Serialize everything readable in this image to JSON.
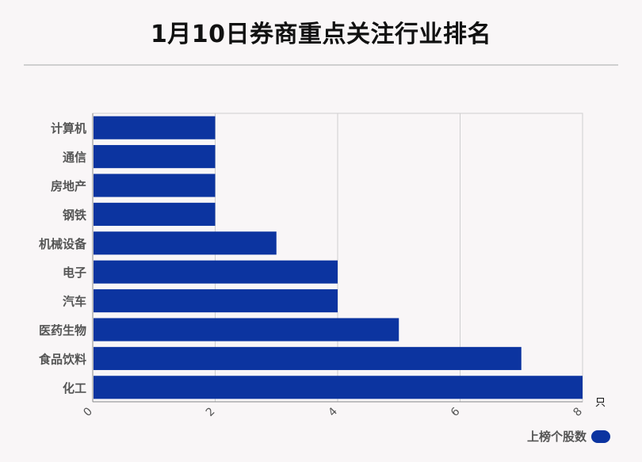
{
  "title": "1月10日券商重点关注行业排名",
  "legend": {
    "label": "上榜个股数",
    "color": "#0c34a0"
  },
  "chart_data": {
    "type": "bar",
    "orientation": "horizontal",
    "title": "1月10日券商重点关注行业排名",
    "categories": [
      "计算机",
      "通信",
      "房地产",
      "钢铁",
      "机械设备",
      "电子",
      "汽车",
      "医药生物",
      "食品饮料",
      "化工"
    ],
    "series": [
      {
        "name": "上榜个股数",
        "values": [
          2,
          2,
          2,
          2,
          3,
          4,
          4,
          5,
          7,
          8
        ]
      }
    ],
    "x_ticks": [
      0,
      2,
      4,
      6,
      8
    ],
    "xlim": [
      0,
      8
    ],
    "unit": "只",
    "grid": true,
    "legend_position": "bottom-right",
    "bar_color": "#0c34a0"
  }
}
